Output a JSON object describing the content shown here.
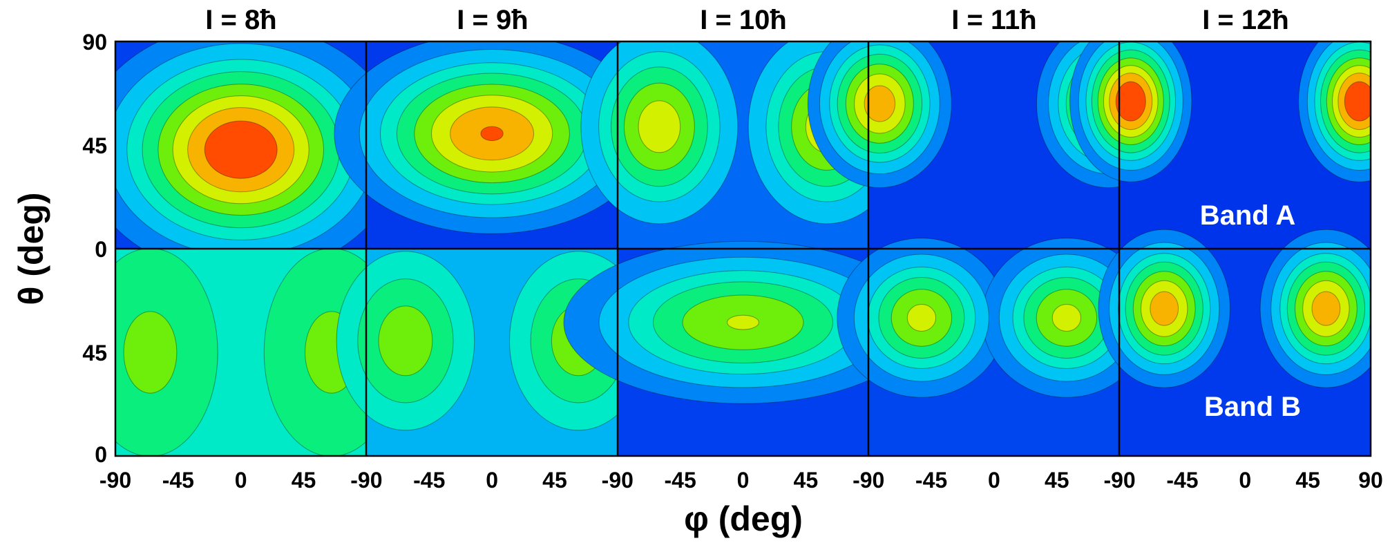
{
  "chart_data": {
    "type": "heatmap",
    "title": "",
    "xlabel": "φ (deg)",
    "ylabel": "θ (deg)",
    "xlim": [
      -90,
      90
    ],
    "ylim": [
      0,
      90
    ],
    "x_ticks": [
      "-90",
      "-45",
      "0",
      "45",
      "-90",
      "-45",
      "0",
      "45",
      "-90",
      "-45",
      "0",
      "45",
      "-90",
      "-45",
      "0",
      "45",
      "-90",
      "-45",
      "0",
      "45",
      "90"
    ],
    "y_ticks_top": [
      "90",
      "45",
      "0"
    ],
    "y_ticks_bottom": [
      "45",
      "0"
    ],
    "columns": [
      "I = 8ħ",
      "I = 9ħ",
      "I = 10ħ",
      "I = 11ħ",
      "I = 12ħ"
    ],
    "rows": [
      "Band A",
      "Band B"
    ],
    "colormap": [
      "#0022e8",
      "#0077f8",
      "#00e8f0",
      "#00ee88",
      "#78ee00",
      "#eef000",
      "#ff8800",
      "#ff0000"
    ],
    "panels": [
      {
        "row": "Band A",
        "column": "I = 8ħ",
        "background": 0.05,
        "peaks": [
          {
            "phi": 0,
            "theta": 43,
            "amp": 0.95,
            "sphi": 50,
            "stheta": 24
          }
        ]
      },
      {
        "row": "Band A",
        "column": "I = 9ħ",
        "background": 0.04,
        "peaks": [
          {
            "phi": 0,
            "theta": 50,
            "amp": 0.85,
            "sphi": 52,
            "stheta": 20
          }
        ]
      },
      {
        "row": "Band A",
        "column": "I = 10ħ",
        "background": 0.12,
        "peaks": [
          {
            "phi": -60,
            "theta": 53,
            "amp": 0.6,
            "sphi": 28,
            "stheta": 21
          },
          {
            "phi": 60,
            "theta": 53,
            "amp": 0.6,
            "sphi": 28,
            "stheta": 21
          }
        ]
      },
      {
        "row": "Band A",
        "column": "I = 11ħ",
        "background": 0.04,
        "peaks": [
          {
            "phi": -82,
            "theta": 63,
            "amp": 0.8,
            "sphi": 24,
            "stheta": 17
          },
          {
            "phi": 82,
            "theta": 63,
            "amp": 0.8,
            "sphi": 24,
            "stheta": 17
          }
        ]
      },
      {
        "row": "Band A",
        "column": "I = 12ħ",
        "background": 0.03,
        "peaks": [
          {
            "phi": -82,
            "theta": 64,
            "amp": 0.98,
            "sphi": 20,
            "stheta": 16
          },
          {
            "phi": 82,
            "theta": 64,
            "amp": 0.98,
            "sphi": 20,
            "stheta": 16
          }
        ]
      },
      {
        "row": "Band B",
        "column": "I = 8ħ",
        "background": 0.34,
        "peaks": [
          {
            "phi": -65,
            "theta": 45,
            "amp": 0.22,
            "sphi": 30,
            "stheta": 28
          },
          {
            "phi": 65,
            "theta": 45,
            "amp": 0.22,
            "sphi": 30,
            "stheta": 28
          }
        ]
      },
      {
        "row": "Band B",
        "column": "I = 9ħ",
        "background": 0.22,
        "peaks": [
          {
            "phi": -62,
            "theta": 50,
            "amp": 0.38,
            "sphi": 28,
            "stheta": 22
          },
          {
            "phi": 62,
            "theta": 50,
            "amp": 0.38,
            "sphi": 28,
            "stheta": 22
          }
        ]
      },
      {
        "row": "Band B",
        "column": "I = 10ħ",
        "background": 0.05,
        "peaks": [
          {
            "phi": 0,
            "theta": 58,
            "amp": 0.6,
            "sphi": 62,
            "stheta": 17
          }
        ]
      },
      {
        "row": "Band B",
        "column": "I = 11ħ",
        "background": 0.06,
        "peaks": [
          {
            "phi": -52,
            "theta": 60,
            "amp": 0.62,
            "sphi": 28,
            "stheta": 16
          },
          {
            "phi": 52,
            "theta": 60,
            "amp": 0.62,
            "sphi": 28,
            "stheta": 16
          }
        ]
      },
      {
        "row": "Band B",
        "column": "I = 12ħ",
        "background": 0.04,
        "peaks": [
          {
            "phi": -58,
            "theta": 64,
            "amp": 0.8,
            "sphi": 22,
            "stheta": 16
          },
          {
            "phi": 58,
            "theta": 64,
            "amp": 0.8,
            "sphi": 22,
            "stheta": 16
          }
        ]
      }
    ]
  }
}
